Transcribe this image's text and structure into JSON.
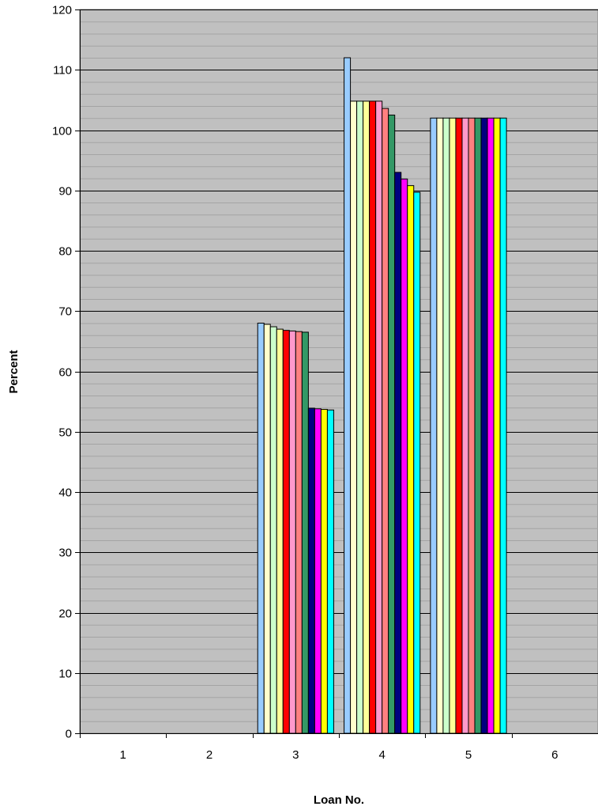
{
  "chart_data": {
    "type": "bar",
    "xlabel": "Loan No.",
    "ylabel": "Percent",
    "ylim": [
      0,
      120
    ],
    "yticks": [
      0,
      10,
      20,
      30,
      40,
      50,
      60,
      70,
      80,
      90,
      100,
      110,
      120
    ],
    "categories": [
      "1",
      "2",
      "3",
      "4",
      "5",
      "6"
    ],
    "grid": true,
    "minor_grid": true,
    "plot_background": "#c0c0c0",
    "series": [
      {
        "color": "#99ccff",
        "values": [
          null,
          null,
          68.0,
          112.0,
          102.0,
          null
        ]
      },
      {
        "color": "#ffffcc",
        "values": [
          null,
          null,
          67.8,
          104.8,
          102.0,
          null
        ]
      },
      {
        "color": "#ccffcc",
        "values": [
          null,
          null,
          67.4,
          104.8,
          102.0,
          null
        ]
      },
      {
        "color": "#ffff99",
        "values": [
          null,
          null,
          67.0,
          104.8,
          102.0,
          null
        ]
      },
      {
        "color": "#ff0000",
        "values": [
          null,
          null,
          66.8,
          104.8,
          102.0,
          null
        ]
      },
      {
        "color": "#ff99cc",
        "values": [
          null,
          null,
          66.7,
          104.8,
          102.0,
          null
        ]
      },
      {
        "color": "#ff8080",
        "values": [
          null,
          null,
          66.6,
          103.6,
          102.0,
          null
        ]
      },
      {
        "color": "#339966",
        "values": [
          null,
          null,
          66.5,
          102.5,
          102.0,
          null
        ]
      },
      {
        "color": "#000080",
        "values": [
          null,
          null,
          53.9,
          93.0,
          102.0,
          null
        ]
      },
      {
        "color": "#ff00ff",
        "values": [
          null,
          null,
          53.8,
          91.9,
          102.0,
          null
        ]
      },
      {
        "color": "#ffff00",
        "values": [
          null,
          null,
          53.7,
          90.8,
          102.0,
          null
        ]
      },
      {
        "color": "#00ffff",
        "values": [
          null,
          null,
          53.6,
          89.7,
          102.0,
          null
        ]
      }
    ]
  }
}
